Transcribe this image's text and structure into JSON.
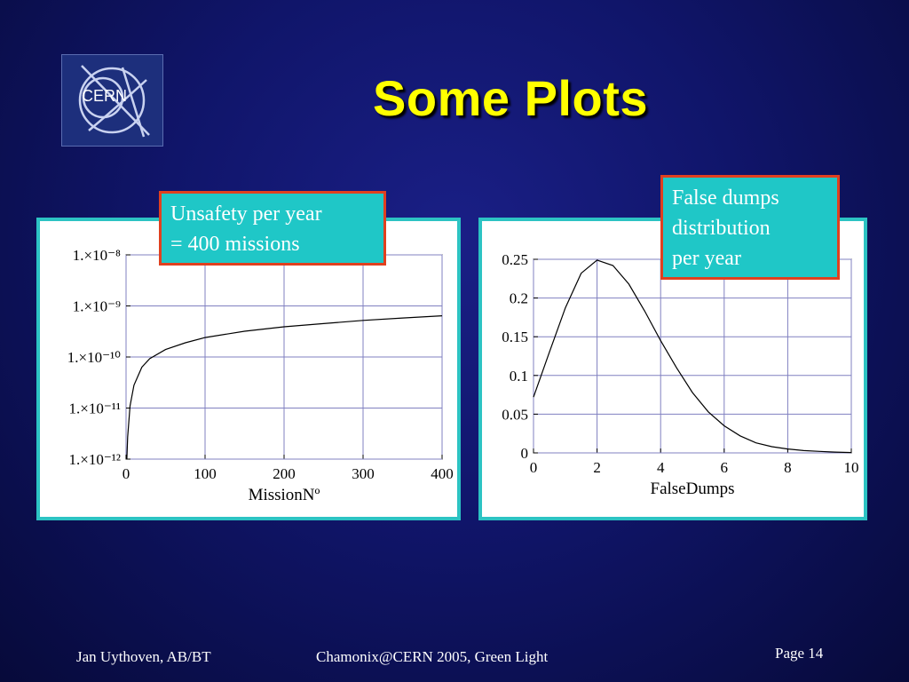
{
  "title": "Some Plots",
  "logo": {
    "text": "CERN",
    "icon": "cern-logo-icon"
  },
  "callouts": {
    "left": [
      "Unsafety per year",
      "= 400 missions"
    ],
    "right": [
      "False dumps",
      "distribution",
      "per year"
    ]
  },
  "footer": {
    "author": "Jan Uythoven, AB/BT",
    "event": "Chamonix@CERN  2005, Green Light",
    "page": "Page 14"
  },
  "colors": {
    "background": "#10156a",
    "title": "#ffff00",
    "panel_border": "#2cc3c3",
    "callout_bg": "#1fc7c7",
    "callout_border": "#e0401f",
    "grid": "#8080c0"
  },
  "chart_data": [
    {
      "type": "line",
      "title": "",
      "xlabel": "MissionNº",
      "ylabel": "",
      "yscale": "log",
      "xlim": [
        0,
        400
      ],
      "ylim": [
        1e-12,
        1e-08
      ],
      "x_ticks": [
        "0",
        "100",
        "200",
        "300",
        "400"
      ],
      "y_ticks": [
        "1.×10⁻¹²",
        "1.×10⁻¹¹",
        "1.×10⁻¹⁰",
        "1.×10⁻⁹",
        "1.×10⁻⁸"
      ],
      "grid": true,
      "series": [
        {
          "x": [
            1,
            2,
            5,
            10,
            20,
            30,
            50,
            75,
            100,
            150,
            200,
            250,
            300,
            350,
            400
          ],
          "y": [
            1e-12,
            2.7e-12,
            1.1e-11,
            2.8e-11,
            6.3e-11,
            9.3e-11,
            1.4e-10,
            1.9e-10,
            2.4e-10,
            3.2e-10,
            3.9e-10,
            4.5e-10,
            5.2e-10,
            5.8e-10,
            6.4e-10
          ]
        }
      ]
    },
    {
      "type": "line",
      "title": "",
      "xlabel": "FalseDumps",
      "ylabel": "",
      "xlim": [
        0,
        10
      ],
      "ylim": [
        0,
        0.25
      ],
      "x_ticks": [
        "0",
        "2",
        "4",
        "6",
        "8",
        "10"
      ],
      "y_ticks": [
        "0",
        "0.05",
        "0.1",
        "0.15",
        "0.2",
        "0.25"
      ],
      "grid": true,
      "series": [
        {
          "x": [
            0,
            0.5,
            1,
            1.5,
            2,
            2.5,
            3,
            3.5,
            4,
            4.5,
            5,
            5.5,
            6,
            6.5,
            7,
            7.5,
            8,
            8.5,
            9,
            9.5,
            10
          ],
          "y": [
            0.072,
            0.13,
            0.187,
            0.232,
            0.249,
            0.242,
            0.218,
            0.183,
            0.145,
            0.11,
            0.078,
            0.053,
            0.035,
            0.022,
            0.013,
            0.008,
            0.005,
            0.003,
            0.002,
            0.001,
            0.0005
          ]
        }
      ]
    }
  ]
}
